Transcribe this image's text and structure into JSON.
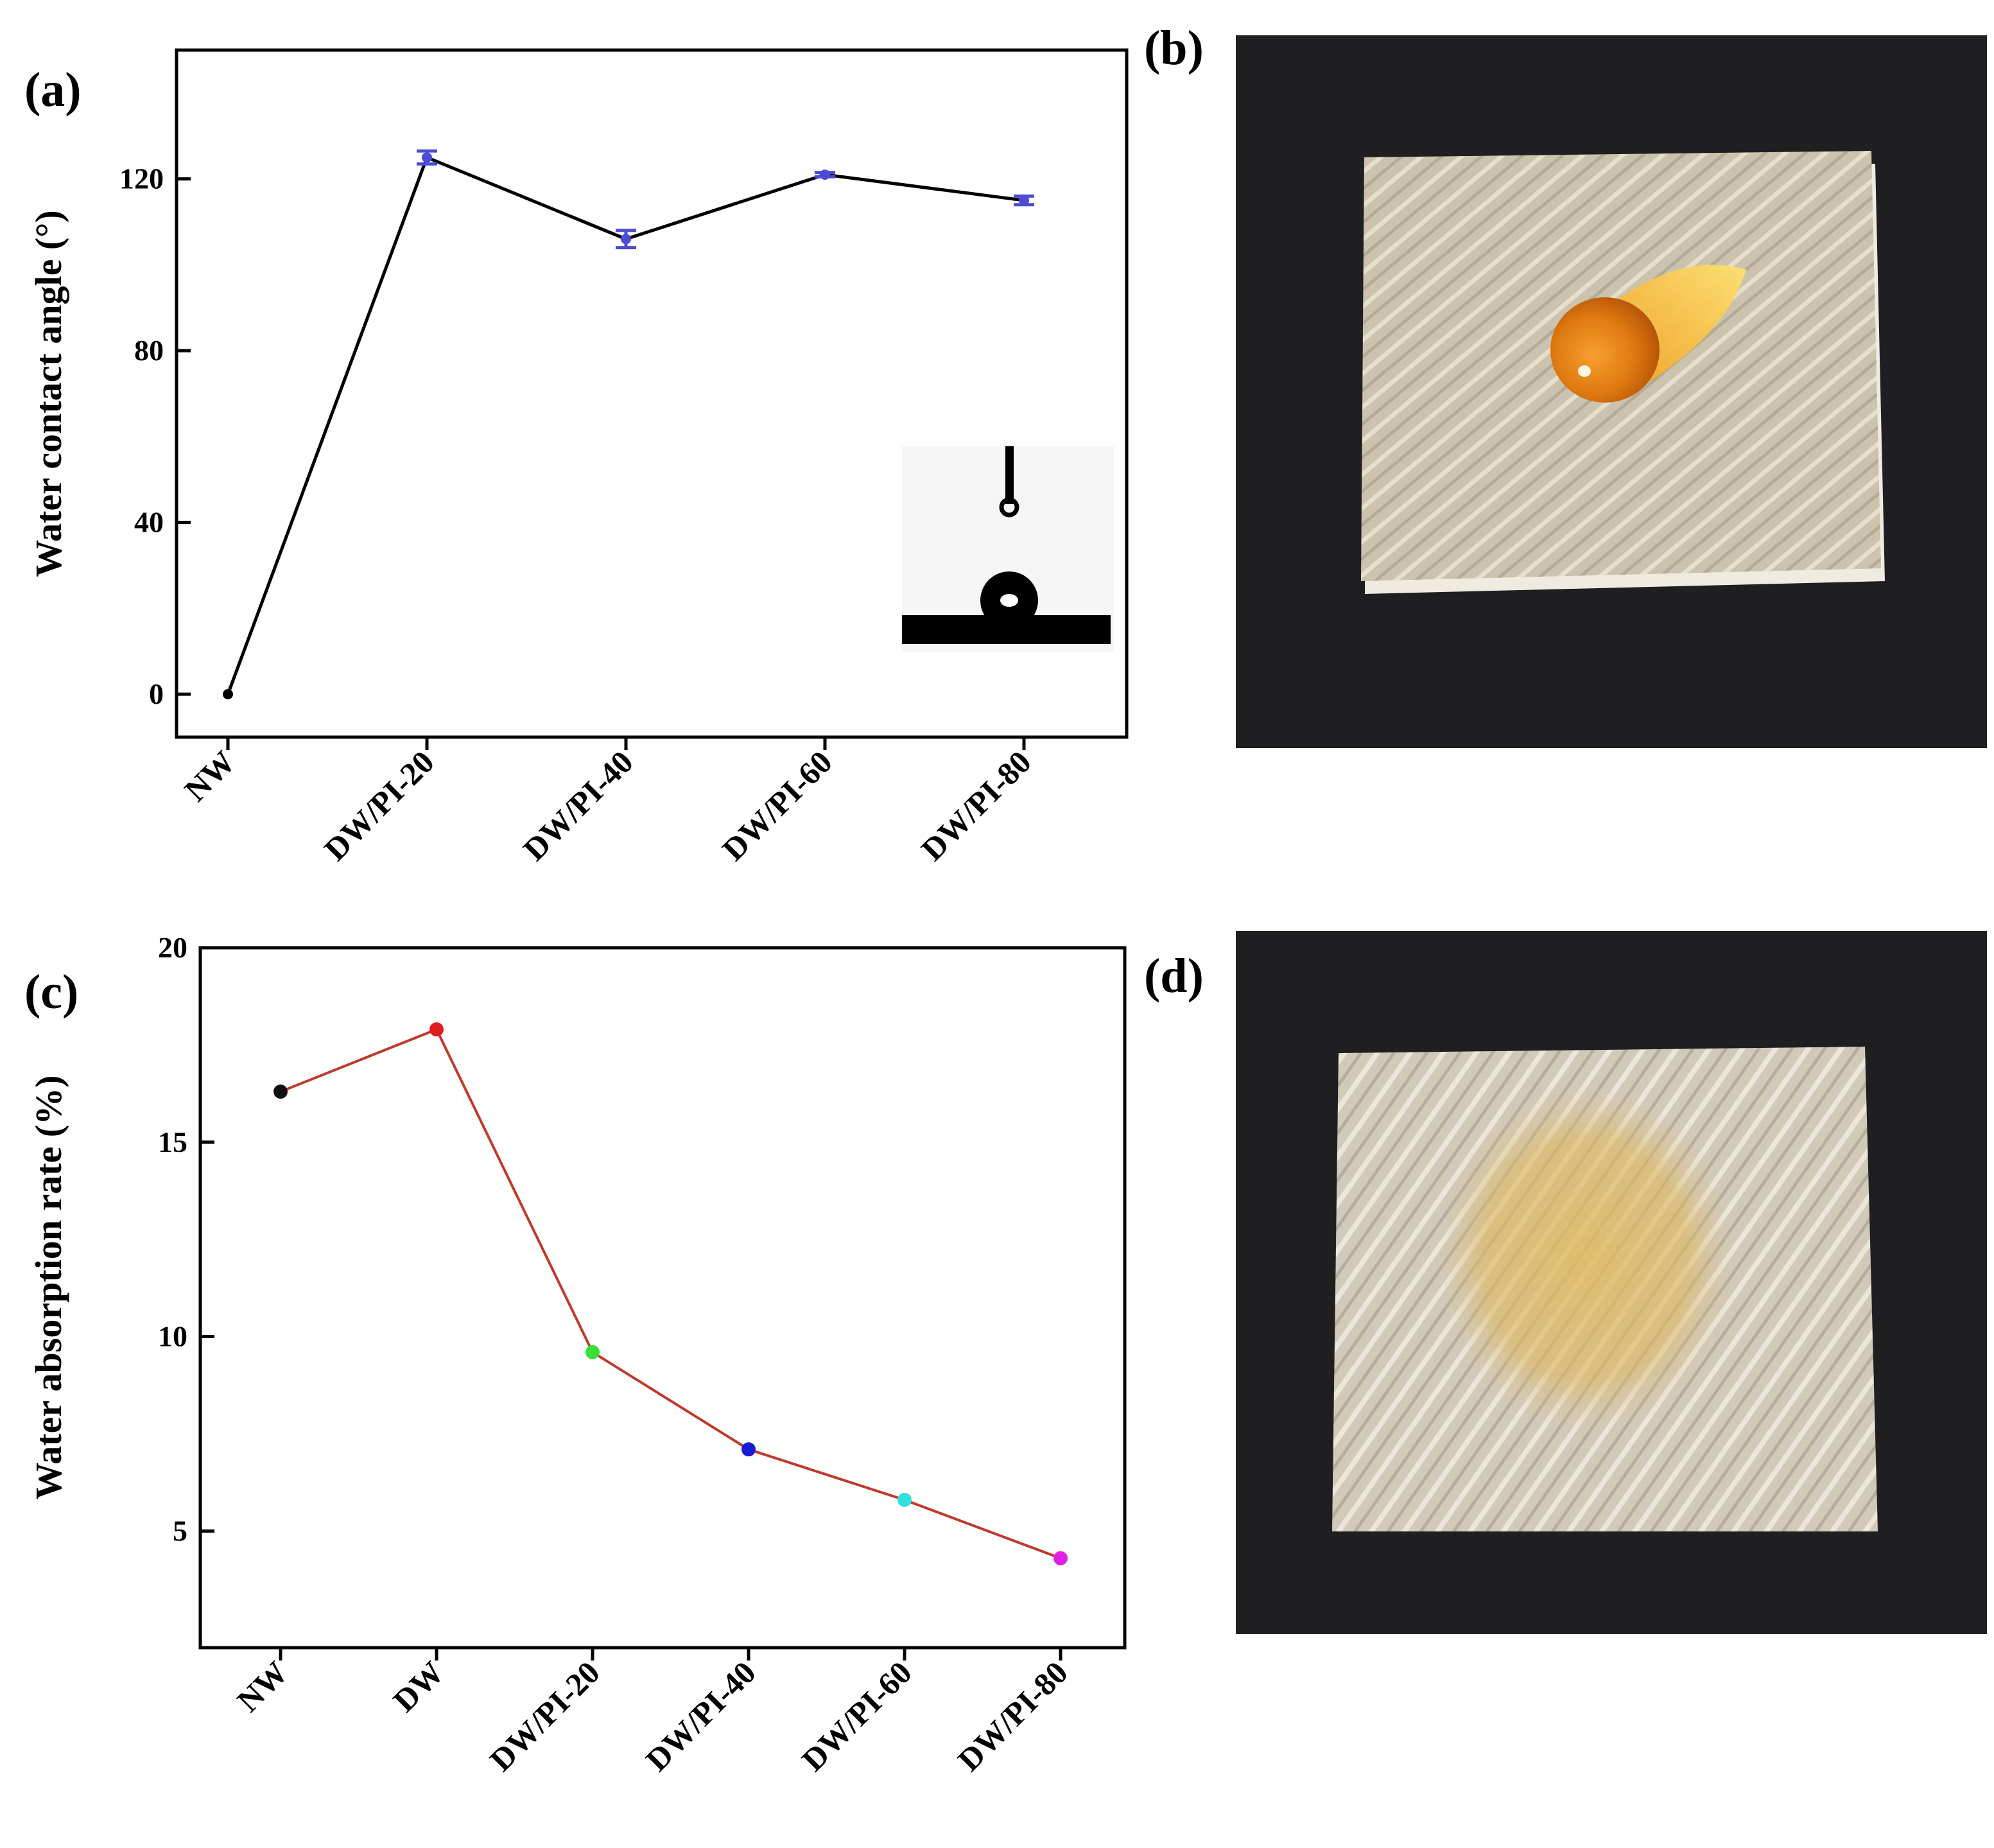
{
  "panels": {
    "a": "(a)",
    "b": "(b)",
    "c": "(c)",
    "d": "(d)"
  },
  "chart_data": [
    {
      "panel": "(a)",
      "type": "line",
      "title": "",
      "xlabel": "",
      "ylabel": "Water contact angle (°)",
      "categories": [
        "NW",
        "DW/PI-20",
        "DW/PI-40",
        "DW/PI-60",
        "DW/PI-80"
      ],
      "values": [
        0,
        125,
        106,
        121,
        115
      ],
      "errors": [
        0,
        1.5,
        2,
        0.5,
        1
      ],
      "ylim": [
        -10,
        150
      ],
      "yticks": [
        0,
        40,
        80,
        120
      ],
      "line_color": "#000000",
      "marker_color": "#4b4bd6",
      "inset": "water droplet on surface (contact angle photo)"
    },
    {
      "panel": "(c)",
      "type": "line",
      "title": "",
      "xlabel": "",
      "ylabel": "Water absorption rate (%)",
      "categories": [
        "NW",
        "DW",
        "DW/PI-20",
        "DW/PI-40",
        "DW/PI-60",
        "DW/PI-80"
      ],
      "values": [
        16.3,
        17.9,
        9.6,
        7.1,
        5.8,
        4.3
      ],
      "ylim": [
        2,
        20
      ],
      "yticks": [
        5,
        10,
        15,
        20
      ],
      "line_color": "#c0392b",
      "marker_colors": [
        "#111111",
        "#e01c1c",
        "#36e036",
        "#1a1ad0",
        "#33e0e0",
        "#e020e0"
      ]
    }
  ],
  "colors": {
    "photo_bg": "#1f1f22",
    "fabric": "#cfc6b0",
    "droplet": "#e07a10"
  }
}
